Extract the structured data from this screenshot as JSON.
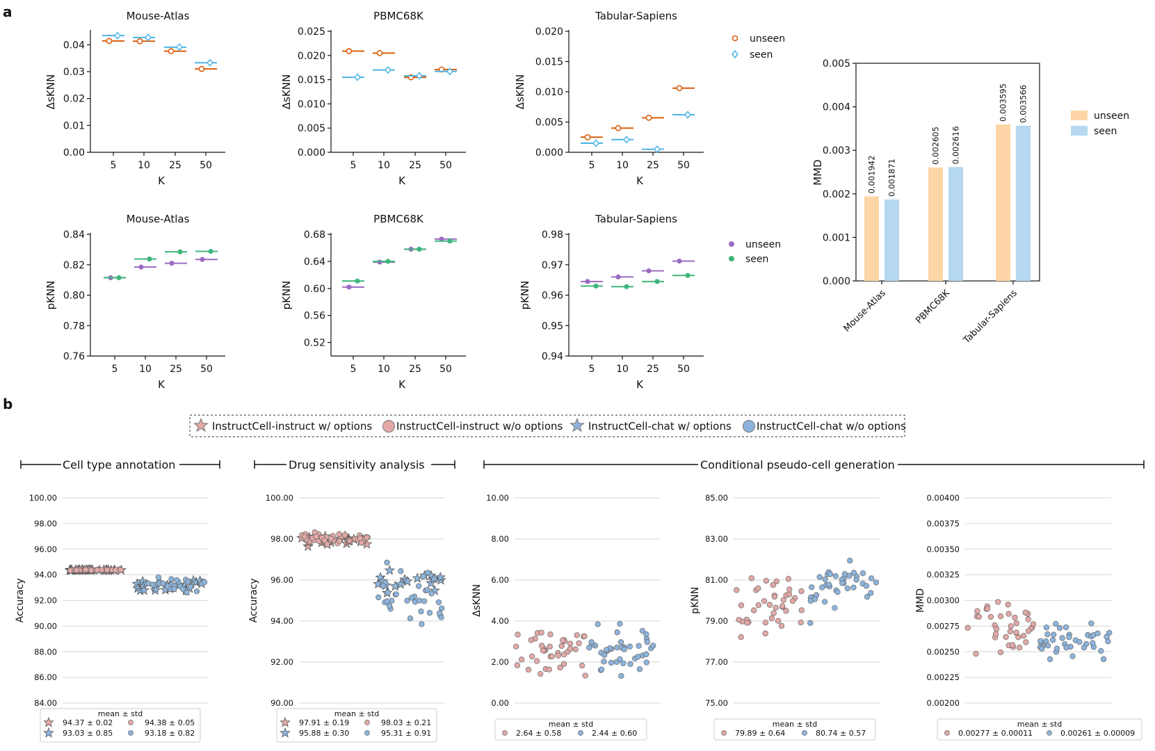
{
  "panel_labels": {
    "a": "a",
    "b": "b"
  },
  "legends": {
    "sknn": {
      "unseen": "unseen",
      "seen": "seen"
    },
    "pknn": {
      "unseen": "unseen",
      "seen": "seen"
    },
    "mmd": {
      "unseen": "unseen",
      "seen": "seen"
    }
  },
  "colors": {
    "sknn_unseen": "#d95f0e",
    "sknn_seen": "#4db3e6",
    "pknn_unseen": "#9b6cc0",
    "pknn_seen": "#3fb67c",
    "bar_unseen": "#fdd5a6",
    "bar_seen": "#b5d8f0",
    "b_pink": "#e2a9a7",
    "b_blue": "#8db4dc"
  },
  "b_legend": {
    "star_pink": "InstructCell-instruct w/ options",
    "circle_pink": "InstructCell-instruct w/o options",
    "star_blue": "InstructCell-chat w/ options",
    "circle_blue": "InstructCell-chat w/o options"
  },
  "b_groups": {
    "g1": "Cell type annotation",
    "g2": "Drug sensitivity analysis",
    "g3": "Conditional pseudo-cell generation"
  },
  "chart_data": [
    {
      "id": "sknn_mouse",
      "type": "scatter",
      "title": "Mouse-Atlas",
      "xlabel": "K",
      "ylabel": "ΔsKNN",
      "categories": [
        "5",
        "10",
        "25",
        "50"
      ],
      "ylim": [
        0,
        0.045
      ],
      "yticks": [
        "0.00",
        "0.01",
        "0.02",
        "0.03",
        "0.04"
      ],
      "series": [
        {
          "name": "unseen",
          "values": [
            0.0414,
            0.0413,
            0.0376,
            0.031
          ]
        },
        {
          "name": "seen",
          "values": [
            0.0434,
            0.0427,
            0.0391,
            0.0333
          ]
        }
      ]
    },
    {
      "id": "sknn_pbmc",
      "type": "scatter",
      "title": "PBMC68K",
      "xlabel": "K",
      "ylabel": "ΔsKNN",
      "categories": [
        "5",
        "10",
        "25",
        "50"
      ],
      "ylim": [
        0,
        0.025
      ],
      "yticks": [
        "0.000",
        "0.005",
        "0.010",
        "0.015",
        "0.020",
        "0.025"
      ],
      "series": [
        {
          "name": "unseen",
          "values": [
            0.0209,
            0.0205,
            0.0155,
            0.0171
          ]
        },
        {
          "name": "seen",
          "values": [
            0.0155,
            0.017,
            0.0158,
            0.0167
          ]
        }
      ]
    },
    {
      "id": "sknn_tabular",
      "type": "scatter",
      "title": "Tabular-Sapiens",
      "xlabel": "K",
      "ylabel": "ΔsKNN",
      "categories": [
        "5",
        "10",
        "25",
        "50"
      ],
      "ylim": [
        0,
        0.02
      ],
      "yticks": [
        "0.000",
        "0.005",
        "0.010",
        "0.015",
        "0.020"
      ],
      "series": [
        {
          "name": "unseen",
          "values": [
            0.0025,
            0.004,
            0.0057,
            0.0106
          ]
        },
        {
          "name": "seen",
          "values": [
            0.0015,
            0.0021,
            0.0005,
            0.0062
          ]
        }
      ]
    },
    {
      "id": "pknn_mouse",
      "type": "scatter",
      "title": "Mouse-Atlas",
      "xlabel": "K",
      "ylabel": "pKNN",
      "categories": [
        "5",
        "10",
        "25",
        "50"
      ],
      "ylim": [
        0.76,
        0.84
      ],
      "yticks": [
        "0.76",
        "0.78",
        "0.80",
        "0.82",
        "0.84"
      ],
      "series": [
        {
          "name": "unseen",
          "values": [
            0.8115,
            0.8185,
            0.821,
            0.8235
          ]
        },
        {
          "name": "seen",
          "values": [
            0.8115,
            0.8238,
            0.8285,
            0.8288
          ]
        }
      ]
    },
    {
      "id": "pknn_pbmc",
      "type": "scatter",
      "title": "PBMC68K",
      "xlabel": "K",
      "ylabel": "pKNN",
      "categories": [
        "5",
        "10",
        "25",
        "50"
      ],
      "ylim": [
        0.5,
        0.68
      ],
      "yticks": [
        "0.52",
        "0.56",
        "0.60",
        "0.64",
        "0.68"
      ],
      "series": [
        {
          "name": "unseen",
          "values": [
            0.602,
            0.639,
            0.658,
            0.673
          ]
        },
        {
          "name": "seen",
          "values": [
            0.611,
            0.64,
            0.658,
            0.67
          ]
        }
      ]
    },
    {
      "id": "pknn_tabular",
      "type": "scatter",
      "title": "Tabular-Sapiens",
      "xlabel": "K",
      "ylabel": "pKNN",
      "categories": [
        "5",
        "10",
        "25",
        "50"
      ],
      "ylim": [
        0.94,
        0.98
      ],
      "yticks": [
        "0.94",
        "0.95",
        "0.96",
        "0.97",
        "0.98"
      ],
      "series": [
        {
          "name": "unseen",
          "values": [
            0.9645,
            0.966,
            0.968,
            0.9712
          ]
        },
        {
          "name": "seen",
          "values": [
            0.963,
            0.9628,
            0.9645,
            0.9665
          ]
        }
      ]
    },
    {
      "id": "mmd_bars",
      "type": "bar",
      "ylabel": "MMD",
      "categories": [
        "Mouse-Atlas",
        "PBMC68K",
        "Tabular-Sapiens"
      ],
      "ylim": [
        0,
        0.005
      ],
      "yticks": [
        "0.000",
        "0.001",
        "0.002",
        "0.003",
        "0.004",
        "0.005"
      ],
      "series": [
        {
          "name": "unseen",
          "values": [
            0.001942,
            0.002605,
            0.003595
          ],
          "labels": [
            "0.001942",
            "0.002605",
            "0.003595"
          ]
        },
        {
          "name": "seen",
          "values": [
            0.001871,
            0.002616,
            0.003566
          ],
          "labels": [
            "0.001871",
            "0.002616",
            "0.003566"
          ]
        }
      ]
    },
    {
      "id": "b_cell",
      "type": "scatter",
      "ylabel": "Accuracy",
      "ylim": [
        84,
        100
      ],
      "yticks": [
        "84.00",
        "86.00",
        "88.00",
        "90.00",
        "92.00",
        "94.00",
        "96.00",
        "98.00",
        "100.00"
      ],
      "groups": [
        {
          "marker": "star",
          "color": "pink",
          "mean": 94.37,
          "std": 0.02
        },
        {
          "marker": "circle",
          "color": "pink",
          "mean": 94.38,
          "std": 0.05
        },
        {
          "marker": "star",
          "color": "blue",
          "mean": 93.03,
          "std": 0.85
        },
        {
          "marker": "circle",
          "color": "blue",
          "mean": 93.18,
          "std": 0.82
        }
      ],
      "legend_title": "mean ± std",
      "legend_entries": [
        "94.37 ± 0.02",
        "94.38 ± 0.05",
        "93.03 ± 0.85",
        "93.18 ± 0.82"
      ]
    },
    {
      "id": "b_drug",
      "type": "scatter",
      "ylabel": "Accuracy",
      "ylim": [
        90,
        100
      ],
      "yticks": [
        "90.00",
        "92.00",
        "94.00",
        "96.00",
        "98.00",
        "100.00"
      ],
      "groups": [
        {
          "marker": "star",
          "color": "pink",
          "mean": 97.91,
          "std": 0.19
        },
        {
          "marker": "circle",
          "color": "pink",
          "mean": 98.03,
          "std": 0.21
        },
        {
          "marker": "star",
          "color": "blue",
          "mean": 95.88,
          "std": 0.3
        },
        {
          "marker": "circle",
          "color": "blue",
          "mean": 95.31,
          "std": 0.91
        }
      ],
      "legend_title": "mean ± std",
      "legend_entries": [
        "97.91 ± 0.19",
        "98.03 ± 0.21",
        "95.88 ± 0.30",
        "95.31 ± 0.91"
      ]
    },
    {
      "id": "b_sknn",
      "type": "scatter",
      "ylabel": "ΔsKNN",
      "ylim": [
        0,
        10
      ],
      "yticks": [
        "0.00",
        "2.00",
        "4.00",
        "6.00",
        "8.00",
        "10.00"
      ],
      "groups": [
        {
          "marker": "circle",
          "color": "pink",
          "mean": 2.64,
          "std": 0.58
        },
        {
          "marker": "circle",
          "color": "blue",
          "mean": 2.44,
          "std": 0.6
        }
      ],
      "legend_title": "mean ± std",
      "legend_entries": [
        "2.64 ± 0.58",
        "2.44 ± 0.60"
      ]
    },
    {
      "id": "b_pknn",
      "type": "scatter",
      "ylabel": "pKNN",
      "ylim": [
        75,
        85
      ],
      "yticks": [
        "75.00",
        "77.00",
        "79.00",
        "81.00",
        "83.00",
        "85.00"
      ],
      "groups": [
        {
          "marker": "circle",
          "color": "pink",
          "mean": 79.89,
          "std": 0.64
        },
        {
          "marker": "circle",
          "color": "blue",
          "mean": 80.74,
          "std": 0.57
        }
      ],
      "legend_title": "mean ± std",
      "legend_entries": [
        "79.89 ± 0.64",
        "80.74 ± 0.57"
      ]
    },
    {
      "id": "b_mmd",
      "type": "scatter",
      "ylabel": "MMD",
      "ylim": [
        0.002,
        0.004
      ],
      "yticks": [
        "0.00200",
        "0.00225",
        "0.00250",
        "0.00275",
        "0.00300",
        "0.00325",
        "0.00350",
        "0.00375",
        "0.00400"
      ],
      "groups": [
        {
          "marker": "circle",
          "color": "pink",
          "mean": 0.00277,
          "std": 0.00011
        },
        {
          "marker": "circle",
          "color": "blue",
          "mean": 0.00261,
          "std": 9e-05
        }
      ],
      "legend_title": "mean ± std",
      "legend_entries": [
        "0.00277 ± 0.00011",
        "0.00261 ± 0.00009"
      ]
    }
  ]
}
